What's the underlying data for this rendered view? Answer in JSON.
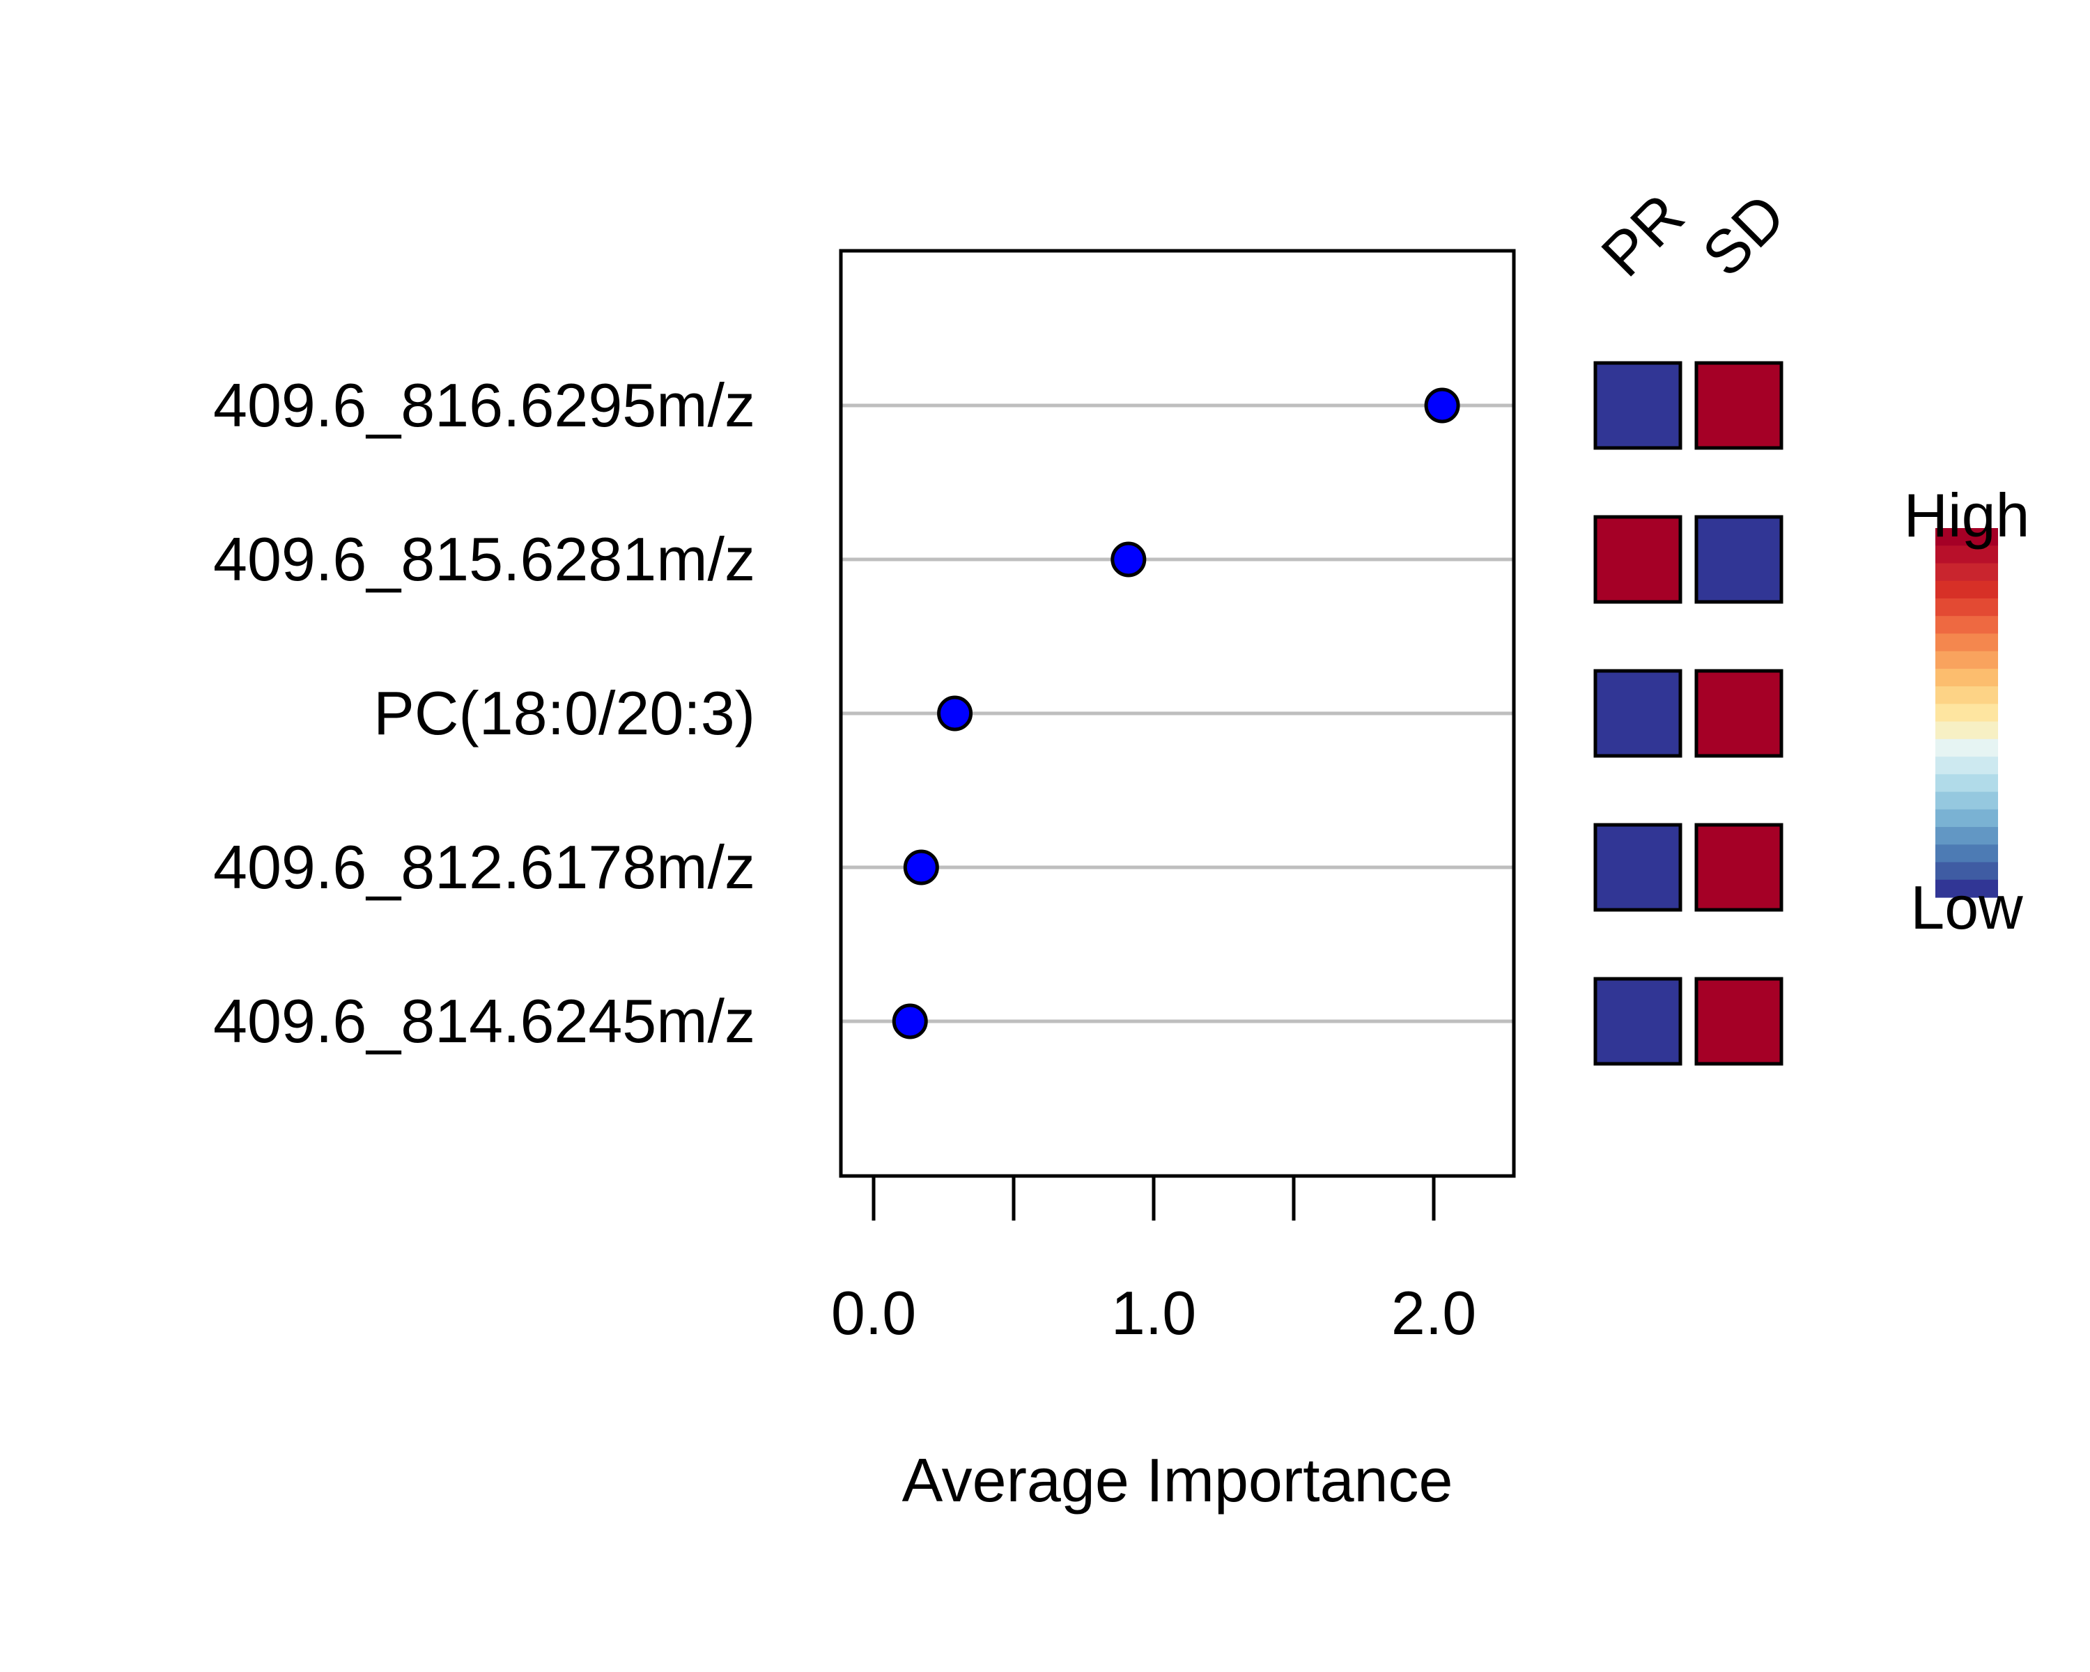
{
  "chart_data": {
    "type": "scatter",
    "xlabel": "Average Importance",
    "xlim": [
      -0.12,
      2.28
    ],
    "x_ticks": [
      0.0,
      0.5,
      1.0,
      1.5,
      2.0
    ],
    "x_tick_labels": [
      "0.0",
      "1.0",
      "2.0"
    ],
    "x_tick_label_values": [
      0.0,
      1.0,
      2.0
    ],
    "grid": false,
    "categories": [
      "409.6_816.6295m/z",
      "409.6_815.6281m/z",
      "PC(18:0/20:3)",
      "409.6_812.6178m/z",
      "409.6_814.6245m/z"
    ],
    "values": [
      2.03,
      0.91,
      0.29,
      0.17,
      0.13
    ],
    "point_color": "#0000ff",
    "group_labels": [
      "PR",
      "SD"
    ],
    "heatmap": [
      [
        "low",
        "high"
      ],
      [
        "high",
        "low"
      ],
      [
        "low",
        "high"
      ],
      [
        "low",
        "high"
      ],
      [
        "low",
        "high"
      ]
    ],
    "heat_colors": {
      "high": "#a50026",
      "low": "#313695"
    },
    "legend": {
      "high_label": "High",
      "low_label": "Low",
      "placement": "right",
      "colors": [
        "#a50026",
        "#b8102a",
        "#c9252e",
        "#d73027",
        "#e34a33",
        "#ee6941",
        "#f4874e",
        "#f9a35e",
        "#fcbd6e",
        "#fdd386",
        "#fee5a0",
        "#f7f0c4",
        "#e6f4f3",
        "#cde9f0",
        "#b1dbe9",
        "#95c8df",
        "#7ab2d3",
        "#6297c4",
        "#4d7bb4",
        "#3f5ca3",
        "#313695"
      ]
    }
  }
}
